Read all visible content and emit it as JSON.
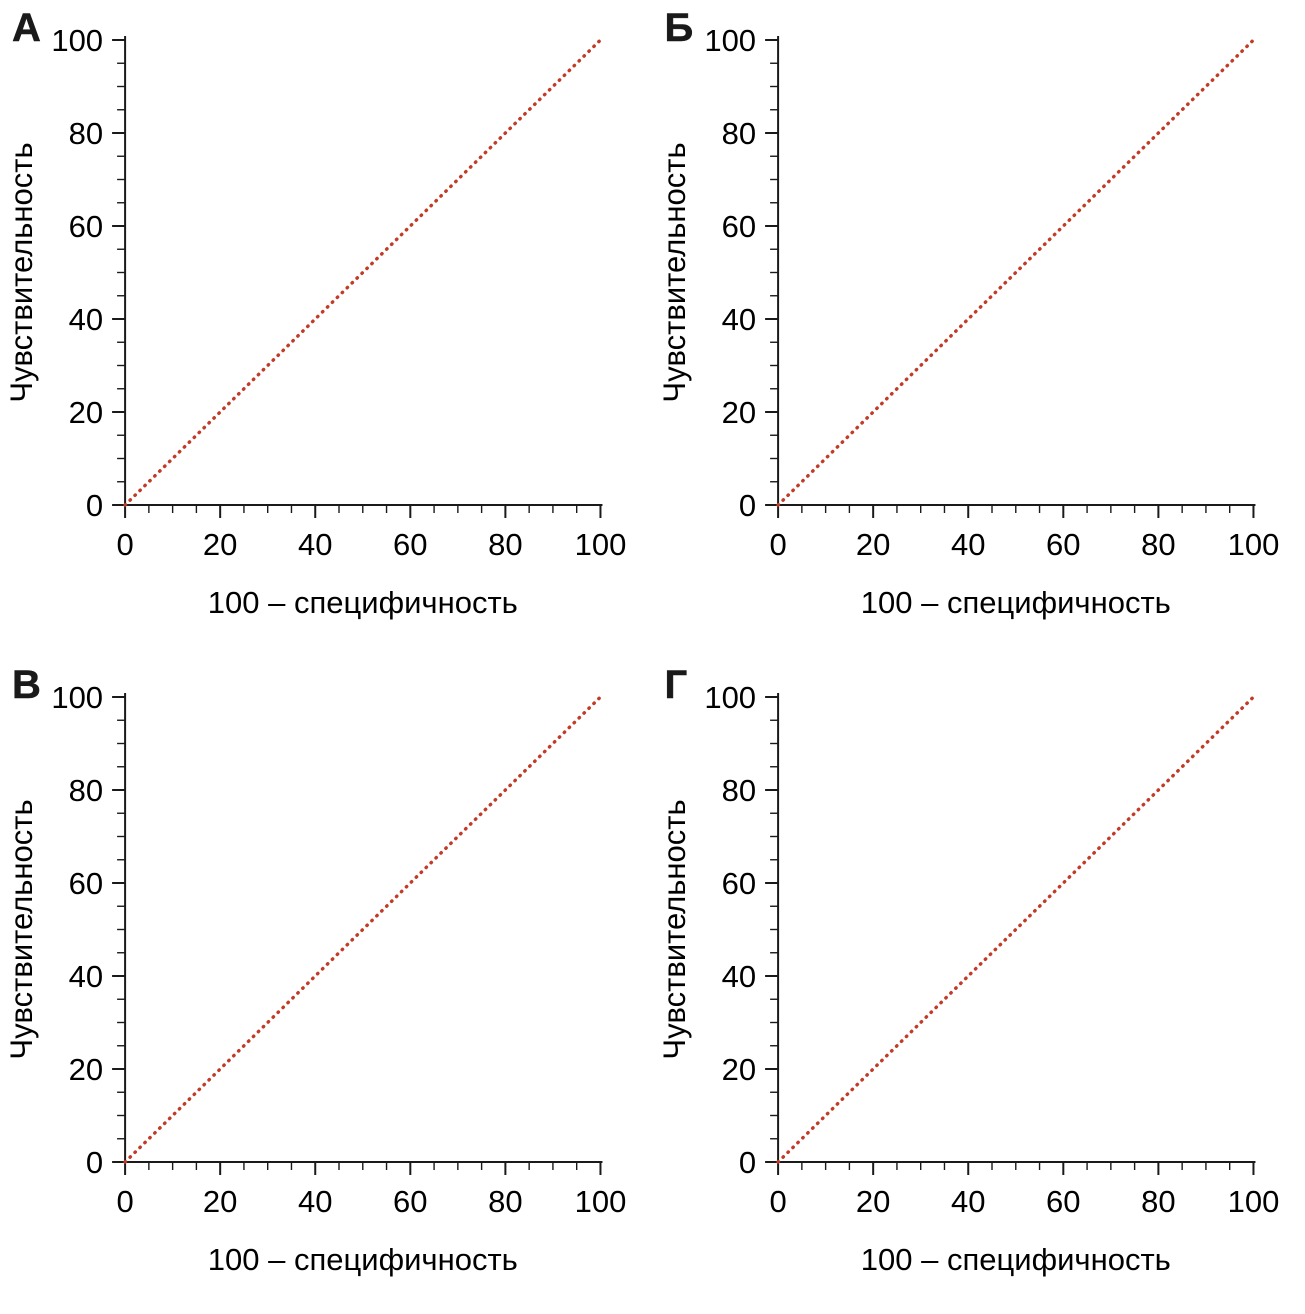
{
  "colors": {
    "axis": "#1a1a1a",
    "text": "#000000",
    "diagonal_line": "#c23b27",
    "background": "#ffffff"
  },
  "panels": [
    {
      "label": "А"
    },
    {
      "label": "Б"
    },
    {
      "label": "В"
    },
    {
      "label": "Г"
    }
  ],
  "chart_data": [
    {
      "type": "line",
      "title": "А",
      "xlabel": "100 – специфичность",
      "ylabel": "Чувствительность",
      "xlim": [
        0,
        100
      ],
      "ylim": [
        0,
        100
      ],
      "xticks": [
        0,
        20,
        40,
        60,
        80,
        100
      ],
      "yticks": [
        0,
        20,
        40,
        60,
        80,
        100
      ],
      "minor_tick_step": 5,
      "major_tick_step": 20,
      "grid": false,
      "legend": "none",
      "series": [
        {
          "name": "reference-diagonal",
          "style": "dotted",
          "color": "#c23b27",
          "x": [
            0,
            100
          ],
          "y": [
            0,
            100
          ]
        }
      ]
    },
    {
      "type": "line",
      "title": "Б",
      "xlabel": "100 – специфичность",
      "ylabel": "Чувствительность",
      "xlim": [
        0,
        100
      ],
      "ylim": [
        0,
        100
      ],
      "xticks": [
        0,
        20,
        40,
        60,
        80,
        100
      ],
      "yticks": [
        0,
        20,
        40,
        60,
        80,
        100
      ],
      "minor_tick_step": 5,
      "major_tick_step": 20,
      "grid": false,
      "legend": "none",
      "series": [
        {
          "name": "reference-diagonal",
          "style": "dotted",
          "color": "#c23b27",
          "x": [
            0,
            100
          ],
          "y": [
            0,
            100
          ]
        }
      ]
    },
    {
      "type": "line",
      "title": "В",
      "xlabel": "100 – специфичность",
      "ylabel": "Чувствительность",
      "xlim": [
        0,
        100
      ],
      "ylim": [
        0,
        100
      ],
      "xticks": [
        0,
        20,
        40,
        60,
        80,
        100
      ],
      "yticks": [
        0,
        20,
        40,
        60,
        80,
        100
      ],
      "minor_tick_step": 5,
      "major_tick_step": 20,
      "grid": false,
      "legend": "none",
      "series": [
        {
          "name": "reference-diagonal",
          "style": "dotted",
          "color": "#c23b27",
          "x": [
            0,
            100
          ],
          "y": [
            0,
            100
          ]
        }
      ]
    },
    {
      "type": "line",
      "title": "Г",
      "xlabel": "100 – специфичность",
      "ylabel": "Чувствительность",
      "xlim": [
        0,
        100
      ],
      "ylim": [
        0,
        100
      ],
      "xticks": [
        0,
        20,
        40,
        60,
        80,
        100
      ],
      "yticks": [
        0,
        20,
        40,
        60,
        80,
        100
      ],
      "minor_tick_step": 5,
      "major_tick_step": 20,
      "grid": false,
      "legend": "none",
      "series": [
        {
          "name": "reference-diagonal",
          "style": "dotted",
          "color": "#c23b27",
          "x": [
            0,
            100
          ],
          "y": [
            0,
            100
          ]
        }
      ]
    }
  ]
}
